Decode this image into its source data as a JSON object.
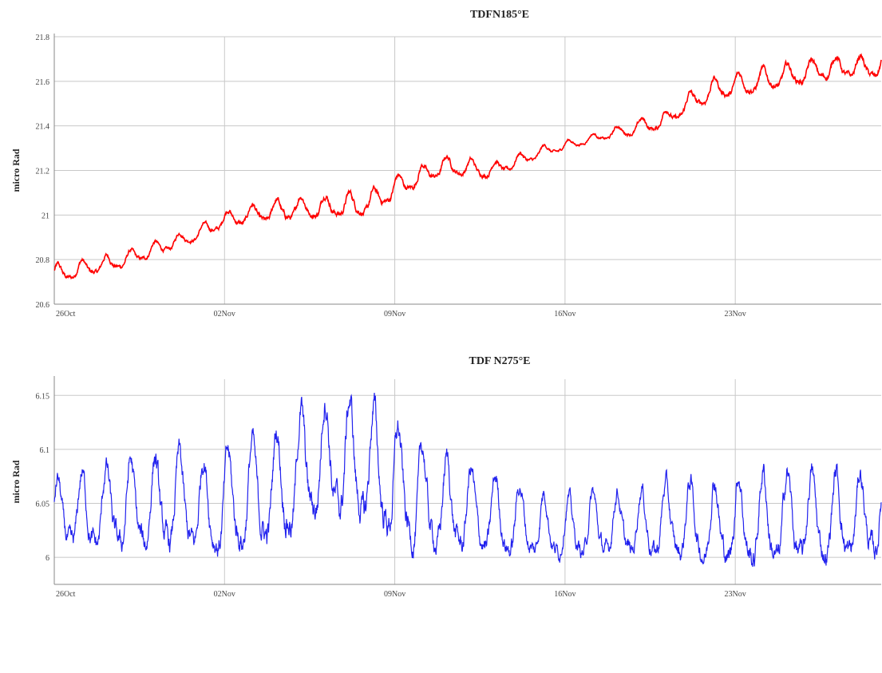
{
  "chart_data": [
    {
      "type": "line",
      "title": "TDFN185°E",
      "ylabel": "micro Rad",
      "xlabel": "",
      "x_domain": [
        "2009-10-26",
        "2009-11-29"
      ],
      "ylim": [
        20.6,
        21.8
      ],
      "yticks": [
        20.6,
        20.8,
        21,
        21.2,
        21.4,
        21.6,
        21.8
      ],
      "ytick_labels": [
        "20.6",
        "20.8",
        "21",
        "21.2",
        "21.4",
        "21.6",
        "21.8"
      ],
      "xticks": [
        "2009-10-26",
        "2009-11-02",
        "2009-11-09",
        "2009-11-16",
        "2009-11-23"
      ],
      "xtick_labels": [
        "26Oct",
        "02Nov",
        "09Nov",
        "16Nov",
        "23Nov"
      ],
      "grid": true,
      "series": [
        {
          "color": "#ff0000",
          "trend": [
            {
              "date": "2009-10-26",
              "value": 20.73
            },
            {
              "date": "2009-10-29",
              "value": 20.8
            },
            {
              "date": "2009-11-01",
              "value": 20.92
            },
            {
              "date": "2009-11-02",
              "value": 20.98
            },
            {
              "date": "2009-11-05",
              "value": 21.03
            },
            {
              "date": "2009-11-08",
              "value": 21.05
            },
            {
              "date": "2009-11-09",
              "value": 21.12
            },
            {
              "date": "2009-11-11",
              "value": 21.22
            },
            {
              "date": "2009-11-13",
              "value": 21.2
            },
            {
              "date": "2009-11-15",
              "value": 21.28
            },
            {
              "date": "2009-11-17",
              "value": 21.34
            },
            {
              "date": "2009-11-20",
              "value": 21.42
            },
            {
              "date": "2009-11-22",
              "value": 21.56
            },
            {
              "date": "2009-11-25",
              "value": 21.62
            },
            {
              "date": "2009-11-27",
              "value": 21.66
            },
            {
              "date": "2009-11-29",
              "value": 21.66
            }
          ],
          "daily_amplitude": [
            {
              "date": "2009-10-26",
              "value": 0.035
            },
            {
              "date": "2009-11-01",
              "value": 0.025
            },
            {
              "date": "2009-11-04",
              "value": 0.045
            },
            {
              "date": "2009-11-08",
              "value": 0.045
            },
            {
              "date": "2009-11-13",
              "value": 0.03
            },
            {
              "date": "2009-11-17",
              "value": 0.015
            },
            {
              "date": "2009-11-21",
              "value": 0.04
            },
            {
              "date": "2009-11-29",
              "value": 0.045
            }
          ]
        }
      ]
    },
    {
      "type": "line",
      "title": "TDF N275°E",
      "ylabel": "micro Rad",
      "xlabel": "",
      "x_domain": [
        "2009-10-26",
        "2009-11-29"
      ],
      "ylim": [
        5.975,
        6.165
      ],
      "yticks": [
        6,
        6.05,
        6.1,
        6.15
      ],
      "ytick_labels": [
        "6",
        "6.05",
        "6.1",
        "6.15"
      ],
      "xticks": [
        "2009-10-26",
        "2009-11-02",
        "2009-11-09",
        "2009-11-16",
        "2009-11-23"
      ],
      "xtick_labels": [
        "26Oct",
        "02Nov",
        "09Nov",
        "16Nov",
        "23Nov"
      ],
      "grid": true,
      "series": [
        {
          "color": "#2222ee",
          "trend": [
            {
              "date": "2009-10-26",
              "value": 6.035
            },
            {
              "date": "2009-10-30",
              "value": 6.045
            },
            {
              "date": "2009-11-02",
              "value": 6.045
            },
            {
              "date": "2009-11-04",
              "value": 6.06
            },
            {
              "date": "2009-11-06",
              "value": 6.09
            },
            {
              "date": "2009-11-08",
              "value": 6.08
            },
            {
              "date": "2009-11-10",
              "value": 6.05
            },
            {
              "date": "2009-11-13",
              "value": 6.035
            },
            {
              "date": "2009-11-16",
              "value": 6.025
            },
            {
              "date": "2009-11-20",
              "value": 6.03
            },
            {
              "date": "2009-11-23",
              "value": 6.03
            },
            {
              "date": "2009-11-29",
              "value": 6.035
            }
          ],
          "daily_amplitude": [
            {
              "date": "2009-10-26",
              "value": 0.03
            },
            {
              "date": "2009-10-30",
              "value": 0.04
            },
            {
              "date": "2009-11-02",
              "value": 0.04
            },
            {
              "date": "2009-11-06",
              "value": 0.05
            },
            {
              "date": "2009-11-08",
              "value": 0.05
            },
            {
              "date": "2009-11-12",
              "value": 0.035
            },
            {
              "date": "2009-11-16",
              "value": 0.025
            },
            {
              "date": "2009-11-20",
              "value": 0.03
            },
            {
              "date": "2009-11-24",
              "value": 0.04
            },
            {
              "date": "2009-11-29",
              "value": 0.035
            }
          ]
        }
      ]
    }
  ]
}
